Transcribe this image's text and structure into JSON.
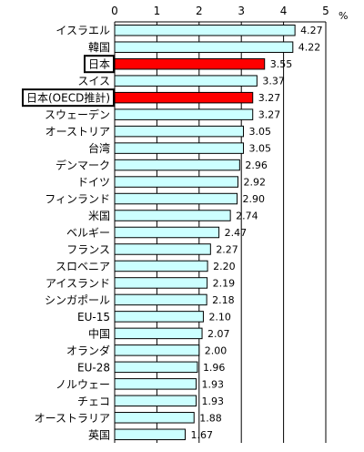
{
  "chart_data": {
    "type": "bar",
    "orientation": "horizontal",
    "unit": "%",
    "xlim": [
      0,
      5
    ],
    "xticks": [
      0,
      1,
      2,
      3,
      4,
      5
    ],
    "grid": true,
    "colors": {
      "default": "#ccffff",
      "highlight": "#ff0000",
      "outline": "#000000",
      "grid": "#000000"
    },
    "categories": [
      "イスラエル",
      "韓国",
      "日本",
      "スイス",
      "日本(OECD推計)",
      "スウェーデン",
      "オーストリア",
      "台湾",
      "デンマーク",
      "ドイツ",
      "フィンランド",
      "米国",
      "ベルギー",
      "フランス",
      "スロベニア",
      "アイスランド",
      "シンガポール",
      "EU-15",
      "中国",
      "オランダ",
      "EU-28",
      "ノルウェー",
      "チェコ",
      "オーストラリア",
      "英国"
    ],
    "values": [
      4.27,
      4.22,
      3.55,
      3.37,
      3.27,
      3.27,
      3.05,
      3.05,
      2.96,
      2.92,
      2.9,
      2.74,
      2.47,
      2.27,
      2.2,
      2.19,
      2.18,
      2.1,
      2.07,
      2.0,
      1.96,
      1.93,
      1.93,
      1.88,
      1.67
    ],
    "value_labels": [
      "4.27",
      "4.22",
      "3.55",
      "3.37",
      "3.27",
      "3.27",
      "3.05",
      "3.05",
      "2.96",
      "2.92",
      "2.90",
      "2.74",
      "2.47",
      "2.27",
      "2.20",
      "2.19",
      "2.18",
      "2.10",
      "2.07",
      "2.00",
      "1.96",
      "1.93",
      "1.93",
      "1.88",
      "1.67"
    ],
    "highlighted": [
      "日本",
      "日本(OECD推計)"
    ],
    "boxed_labels": [
      "日本",
      "日本(OECD推計)"
    ]
  }
}
